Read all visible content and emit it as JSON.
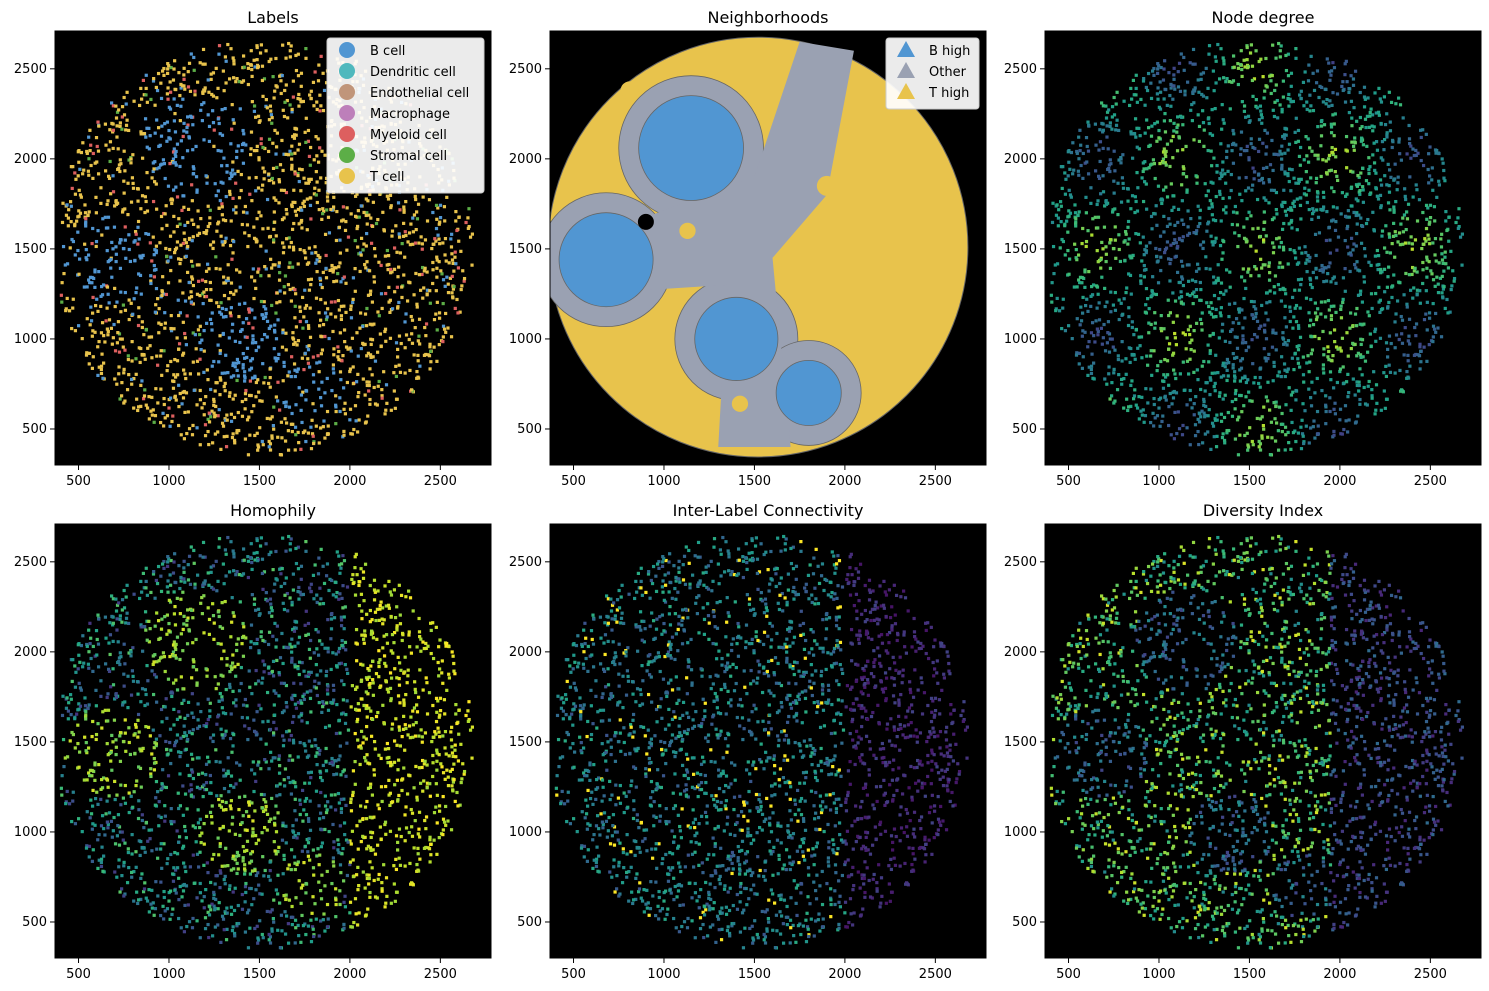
{
  "chart_data": [
    {
      "type": "scatter",
      "title": "Labels",
      "xlim": [
        370,
        2780
      ],
      "ylim": [
        300,
        2710
      ],
      "x_ticks": [
        "500",
        "1000",
        "1500",
        "2000",
        "2500"
      ],
      "y_ticks": [
        "500",
        "1000",
        "1500",
        "2000",
        "2500"
      ],
      "background": "#000000",
      "legend": {
        "position": "upper-right",
        "marker": "circle",
        "entries": [
          {
            "label": "B cell",
            "color": "#5196d2"
          },
          {
            "label": "Dendritic cell",
            "color": "#4fb8bd"
          },
          {
            "label": "Endothelial cell",
            "color": "#c0957a"
          },
          {
            "label": "Macrophage",
            "color": "#bd7fba"
          },
          {
            "label": "Myeloid cell",
            "color": "#dd5f5f"
          },
          {
            "label": "Stromal cell",
            "color": "#5cae47"
          },
          {
            "label": "T cell",
            "color": "#e8c34c"
          }
        ]
      }
    },
    {
      "type": "scatter",
      "title": "Neighborhoods",
      "xlim": [
        370,
        2780
      ],
      "ylim": [
        300,
        2710
      ],
      "x_ticks": [
        "500",
        "1000",
        "1500",
        "2000",
        "2500"
      ],
      "y_ticks": [
        "500",
        "1000",
        "1500",
        "2000",
        "2500"
      ],
      "background": "#000000",
      "legend": {
        "position": "upper-right",
        "marker": "triangle",
        "entries": [
          {
            "label": "B high",
            "color": "#5196d2"
          },
          {
            "label": "Other",
            "color": "#9aa1b2"
          },
          {
            "label": "T high",
            "color": "#e8c34c"
          }
        ]
      }
    },
    {
      "type": "scatter",
      "title": "Node degree",
      "xlim": [
        370,
        2780
      ],
      "ylim": [
        300,
        2710
      ],
      "x_ticks": [
        "500",
        "1000",
        "1500",
        "2000",
        "2500"
      ],
      "y_ticks": [
        "500",
        "1000",
        "1500",
        "2000",
        "2500"
      ],
      "background": "#000000",
      "colormap": "viridis"
    },
    {
      "type": "scatter",
      "title": "Homophily",
      "xlim": [
        370,
        2780
      ],
      "ylim": [
        300,
        2710
      ],
      "x_ticks": [
        "500",
        "1000",
        "1500",
        "2000",
        "2500"
      ],
      "y_ticks": [
        "500",
        "1000",
        "1500",
        "2000",
        "2500"
      ],
      "background": "#000000",
      "colormap": "viridis"
    },
    {
      "type": "scatter",
      "title": "Inter-Label Connectivity",
      "xlim": [
        370,
        2780
      ],
      "ylim": [
        300,
        2710
      ],
      "x_ticks": [
        "500",
        "1000",
        "1500",
        "2000",
        "2500"
      ],
      "y_ticks": [
        "500",
        "1000",
        "1500",
        "2000",
        "2500"
      ],
      "background": "#000000",
      "colormap": "viridis"
    },
    {
      "type": "scatter",
      "title": "Diversity Index",
      "xlim": [
        370,
        2780
      ],
      "ylim": [
        300,
        2710
      ],
      "x_ticks": [
        "500",
        "1000",
        "1500",
        "2000",
        "2500"
      ],
      "y_ticks": [
        "500",
        "1000",
        "1500",
        "2000",
        "2500"
      ],
      "background": "#000000",
      "colormap": "viridis"
    }
  ]
}
